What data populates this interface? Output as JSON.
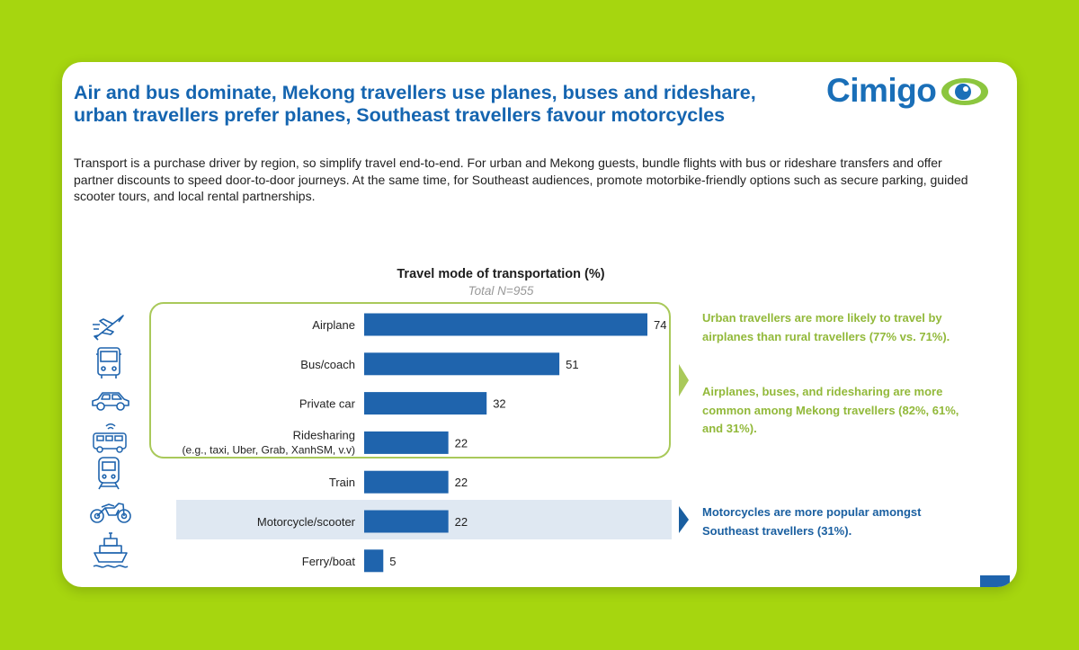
{
  "slide": {
    "title_line1": "Air and bus dominate, Mekong travellers use planes, buses and rideshare,",
    "title_line2": "urban travellers prefer planes, Southeast travellers favour motorcycles",
    "logo_text": "Cimigo",
    "intro": "Transport is a purchase driver by region, so simplify travel end-to-end. For urban and Mekong guests, bundle flights with bus or rideshare transfers and offer partner discounts to speed door-to-door journeys. At the same time, for Southeast audiences, promote motorbike-friendly options such as secure parking, guided scooter tours, and local rental partnerships."
  },
  "colors": {
    "background": "#a6d60f",
    "bar": "#1f64ad",
    "title": "#1565b0",
    "green_note": "#92b93a",
    "blue_note": "#1a5fa0"
  },
  "chart_data": {
    "type": "bar",
    "orientation": "horizontal",
    "title": "Travel mode of transportation (%)",
    "subtitle": "Total N=955",
    "categories": [
      "Airplane",
      "Bus/coach",
      "Private car",
      "Ridesharing",
      "Train",
      "Motorcycle/scooter",
      "Ferry/boat"
    ],
    "category_sublabels": [
      "",
      "",
      "",
      "(e.g., taxi, Uber, Grab, XanhSM, v.v)",
      "",
      "",
      ""
    ],
    "values": [
      74,
      51,
      32,
      22,
      22,
      22,
      5
    ],
    "value_labels": [
      "74",
      "51",
      "32",
      "22",
      "22",
      "22",
      "5"
    ],
    "icons": [
      "airplane-icon",
      "bus-icon",
      "car-icon",
      "ridesharing-icon",
      "train-icon",
      "motorcycle-icon",
      "ferry-icon"
    ],
    "xlim": [
      0,
      74
    ],
    "grid": false,
    "legend": "none"
  },
  "notes": {
    "urban": "Urban travellers are more likely to travel by airplanes than rural travellers (77% vs. 71%).",
    "mekong": "Airplanes, buses, and ridesharing are more common among Mekong travellers (82%, 61%, and 31%).",
    "southeast": "Motorcycles are more popular amongst Southeast travellers (31%)."
  }
}
